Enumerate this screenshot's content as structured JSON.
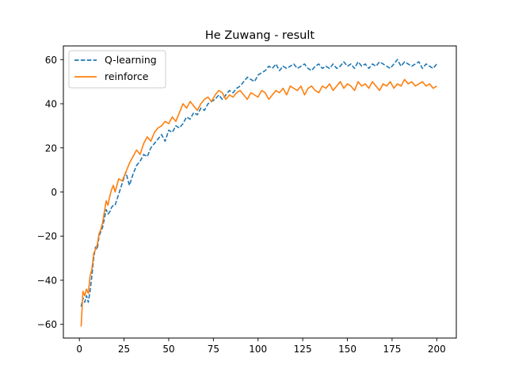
{
  "chart_data": {
    "type": "line",
    "title": "He Zuwang - result",
    "xlabel": "",
    "ylabel": "",
    "xlim": [
      -8.95,
      210.95
    ],
    "ylim": [
      -66.2,
      66.2
    ],
    "x_ticks": [
      0,
      25,
      50,
      75,
      100,
      125,
      150,
      175,
      200
    ],
    "y_ticks": [
      -60,
      -40,
      -20,
      0,
      20,
      40,
      60
    ],
    "grid": false,
    "legend_position": "top-left",
    "series": [
      {
        "name": "Q-learning",
        "color": "#1f77b4",
        "dash": "dashed",
        "x": [
          1,
          2,
          3,
          4,
          5,
          6,
          7,
          8,
          9,
          10,
          11,
          12,
          13,
          14,
          15,
          16,
          17,
          18,
          19,
          20,
          22,
          24,
          26,
          28,
          30,
          32,
          34,
          36,
          38,
          40,
          42,
          44,
          46,
          48,
          50,
          52,
          54,
          56,
          58,
          60,
          62,
          64,
          66,
          68,
          70,
          72,
          74,
          76,
          78,
          80,
          82,
          84,
          86,
          88,
          90,
          92,
          94,
          96,
          98,
          100,
          102,
          104,
          106,
          108,
          110,
          112,
          114,
          116,
          118,
          120,
          122,
          124,
          126,
          128,
          130,
          132,
          134,
          136,
          138,
          140,
          142,
          144,
          146,
          148,
          150,
          152,
          154,
          156,
          158,
          160,
          162,
          164,
          166,
          168,
          170,
          172,
          174,
          176,
          178,
          180,
          182,
          184,
          186,
          188,
          190,
          192,
          194,
          196,
          198,
          200
        ],
        "values": [
          -52,
          -48,
          -50,
          -47,
          -50,
          -45,
          -38,
          -30,
          -25,
          -26,
          -20,
          -18,
          -16,
          -12,
          -8,
          -10,
          -9,
          -7,
          -6,
          -6,
          -1,
          4,
          9,
          3,
          8,
          12,
          14,
          17,
          16,
          20,
          22,
          24,
          26,
          23,
          28,
          27,
          30,
          29,
          31,
          34,
          33,
          36,
          35,
          38,
          37,
          40,
          41,
          42,
          44,
          42,
          44,
          46,
          45,
          47,
          48,
          50,
          52,
          51,
          50,
          53,
          54,
          55,
          57,
          56,
          58,
          55,
          57,
          56,
          57,
          58,
          56,
          57,
          58,
          56,
          55,
          57,
          58,
          56,
          57,
          56,
          58,
          56,
          57,
          59,
          57,
          58,
          56,
          59,
          57,
          58,
          56,
          58,
          57,
          59,
          58,
          57,
          56,
          58,
          60,
          57,
          59,
          58,
          57,
          58,
          59,
          56,
          58,
          57,
          56,
          58
        ]
      },
      {
        "name": "reinforce",
        "color": "#ff7f0e",
        "dash": "solid",
        "x": [
          1,
          2,
          3,
          4,
          5,
          6,
          7,
          8,
          9,
          10,
          11,
          12,
          13,
          14,
          15,
          16,
          17,
          18,
          19,
          20,
          22,
          24,
          26,
          28,
          30,
          32,
          34,
          36,
          38,
          40,
          42,
          44,
          46,
          48,
          50,
          52,
          54,
          56,
          58,
          60,
          62,
          64,
          66,
          68,
          70,
          72,
          74,
          76,
          78,
          80,
          82,
          84,
          86,
          88,
          90,
          92,
          94,
          96,
          98,
          100,
          102,
          104,
          106,
          108,
          110,
          112,
          114,
          116,
          118,
          120,
          122,
          124,
          126,
          128,
          130,
          132,
          134,
          136,
          138,
          140,
          142,
          144,
          146,
          148,
          150,
          152,
          154,
          156,
          158,
          160,
          162,
          164,
          166,
          168,
          170,
          172,
          174,
          176,
          178,
          180,
          182,
          184,
          186,
          188,
          190,
          192,
          194,
          196,
          198,
          200
        ],
        "values": [
          -61,
          -45,
          -47,
          -44,
          -46,
          -38,
          -35,
          -28,
          -26,
          -24,
          -19,
          -17,
          -14,
          -9,
          -4,
          -6,
          -2,
          1,
          3,
          0,
          6,
          5,
          9,
          13,
          16,
          19,
          17,
          22,
          25,
          23,
          27,
          29,
          30,
          32,
          31,
          34,
          32,
          36,
          40,
          38,
          41,
          39,
          37,
          40,
          42,
          43,
          41,
          44,
          46,
          45,
          42,
          44,
          43,
          45,
          46,
          44,
          42,
          45,
          44,
          43,
          46,
          45,
          42,
          44,
          46,
          45,
          47,
          44,
          48,
          47,
          46,
          48,
          44,
          47,
          48,
          46,
          45,
          48,
          47,
          49,
          46,
          48,
          50,
          47,
          49,
          48,
          46,
          50,
          48,
          49,
          47,
          50,
          48,
          46,
          49,
          48,
          50,
          47,
          49,
          48,
          51,
          49,
          50,
          48,
          49,
          50,
          48,
          49,
          47,
          48
        ]
      }
    ]
  }
}
